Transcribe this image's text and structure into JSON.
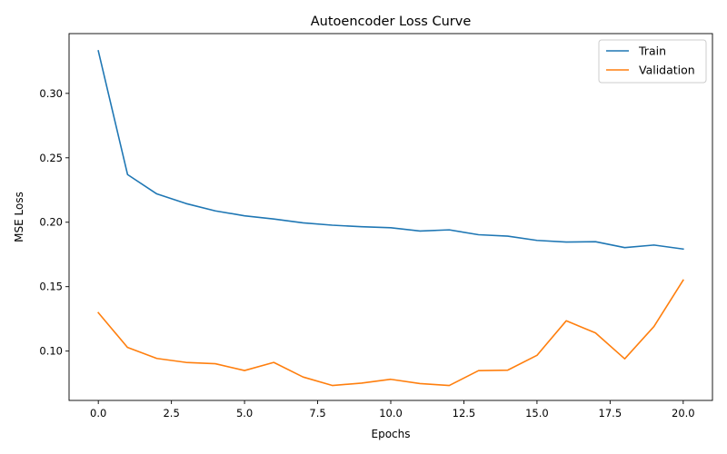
{
  "chart_data": {
    "type": "line",
    "title": "Autoencoder Loss Curve",
    "xlabel": "Epochs",
    "ylabel": "MSE Loss",
    "xlim": [
      -1.0,
      21.0
    ],
    "ylim": [
      0.0617,
      0.3464
    ],
    "x_ticks": [
      0.0,
      2.5,
      5.0,
      7.5,
      10.0,
      12.5,
      15.0,
      17.5,
      20.0
    ],
    "x_tick_labels": [
      "0.0",
      "2.5",
      "5.0",
      "7.5",
      "10.0",
      "12.5",
      "15.0",
      "17.5",
      "20.0"
    ],
    "y_ticks": [
      0.1,
      0.15,
      0.2,
      0.25,
      0.3
    ],
    "y_tick_labels": [
      "0.10",
      "0.15",
      "0.20",
      "0.25",
      "0.30"
    ],
    "grid": false,
    "legend_position": "top-right",
    "x": [
      0,
      1,
      2,
      3,
      4,
      5,
      6,
      7,
      8,
      9,
      10,
      11,
      12,
      13,
      14,
      15,
      16,
      17,
      18,
      19,
      20
    ],
    "series": [
      {
        "name": "Train",
        "color": "#1f77b4",
        "values": [
          0.333,
          0.237,
          0.222,
          0.2145,
          0.2088,
          0.205,
          0.2025,
          0.1995,
          0.1977,
          0.1965,
          0.1957,
          0.1932,
          0.1941,
          0.1903,
          0.1892,
          0.1859,
          0.1846,
          0.1849,
          0.1803,
          0.1823,
          0.1792
        ]
      },
      {
        "name": "Validation",
        "color": "#ff7f0e",
        "values": [
          0.1298,
          0.1028,
          0.0943,
          0.0912,
          0.0902,
          0.0849,
          0.0912,
          0.0799,
          0.0733,
          0.0751,
          0.0781,
          0.0748,
          0.0733,
          0.0848,
          0.0852,
          0.0967,
          0.1235,
          0.1141,
          0.094,
          0.1191,
          0.1551
        ]
      }
    ]
  }
}
